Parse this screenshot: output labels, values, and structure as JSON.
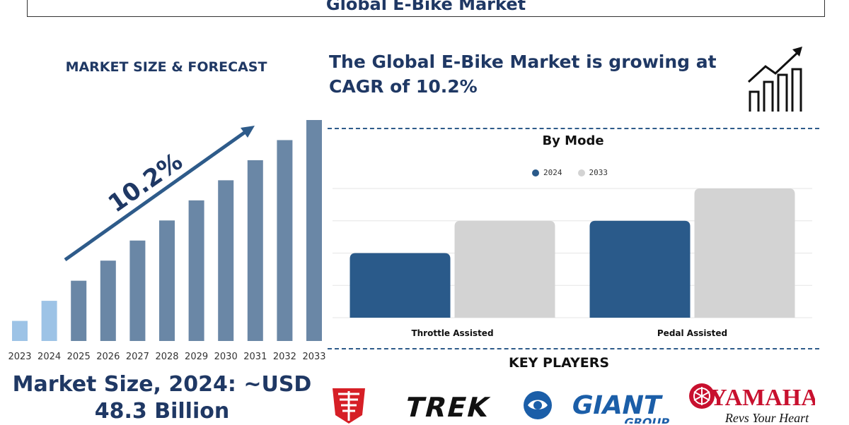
{
  "title": "Global E-Bike Market",
  "left_heading": "MARKET SIZE & FORECAST",
  "cagr_label": "10.2%",
  "market_size_text": "Market Size, 2024: ~USD 48.3 Billion",
  "growth_text": "The Global E-Bike Market is growing at CAGR of 10.2%",
  "mode_title": "By Mode",
  "key_players_title": "KEY PLAYERS",
  "colors": {
    "navy": "#1f3864",
    "bar_light": "#9dc3e6",
    "bar_dark": "#6a87a6",
    "series_2024": "#2a5a8a",
    "series_2033": "#d3d3d3",
    "arrow": "#2e5b8a"
  },
  "logos": [
    {
      "name": "trek-emblem-logo",
      "text": ""
    },
    {
      "name": "trek-logo",
      "text": "TREK"
    },
    {
      "name": "giant-logo",
      "text": "GIANT",
      "sub": "GROUP"
    },
    {
      "name": "yamaha-logo",
      "text": "YAMAHA",
      "sub": "Revs Your Heart"
    }
  ],
  "chart_data": [
    {
      "type": "bar",
      "categories": [
        "2023",
        "2024",
        "2025",
        "2026",
        "2027",
        "2028",
        "2029",
        "2030",
        "2031",
        "2032",
        "2033"
      ],
      "values": [
        1,
        2,
        3,
        4,
        5,
        6,
        7,
        8,
        9,
        10,
        11
      ],
      "highlight": [
        "2023",
        "2024"
      ],
      "title": "MARKET SIZE & FORECAST",
      "annotation": "10.2%",
      "ylim": [
        0,
        11
      ]
    },
    {
      "type": "bar",
      "title": "By Mode",
      "categories": [
        "Throttle Assisted",
        "Pedal Assisted"
      ],
      "series": [
        {
          "name": "2024",
          "values": [
            2,
            3
          ]
        },
        {
          "name": "2033",
          "values": [
            3,
            4
          ]
        }
      ],
      "ylim": [
        0,
        4
      ],
      "grid": true,
      "legend": "top-center"
    }
  ]
}
